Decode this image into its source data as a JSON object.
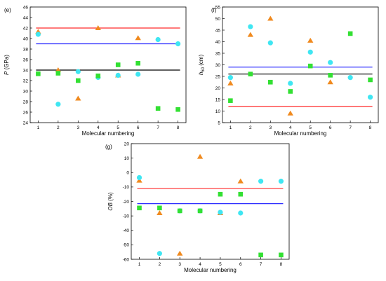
{
  "chart_data": [
    {
      "type": "scatter",
      "panel_label": "(e)",
      "xlabel": "Molecular numbering",
      "ylabel": "P (GPa)",
      "ylabel_main": "P",
      "ylabel_unit": " (GPa)",
      "xlim": [
        0.6,
        8.4
      ],
      "ylim": [
        24,
        46
      ],
      "xticks": [
        1,
        2,
        3,
        4,
        5,
        6,
        7,
        8
      ],
      "yticks": [
        24,
        26,
        28,
        30,
        32,
        34,
        36,
        38,
        40,
        42,
        44,
        46
      ],
      "hlines": [
        {
          "y": 42,
          "color": "#ff2a2a"
        },
        {
          "y": 39,
          "color": "#2a2aff"
        },
        {
          "y": 34,
          "color": "#000000"
        }
      ],
      "series": [
        {
          "marker": "triangle",
          "color": "#f08a1f",
          "x": [
            1,
            2,
            3,
            4,
            5,
            6
          ],
          "values": [
            41.3,
            34.0,
            28.6,
            42.0,
            33.0,
            40.1
          ]
        },
        {
          "marker": "circle",
          "color": "#3fe6f2",
          "x": [
            1,
            2,
            3,
            4,
            5,
            6,
            7,
            8
          ],
          "values": [
            40.8,
            27.5,
            33.7,
            32.6,
            33.0,
            33.2,
            39.8,
            39.0
          ]
        },
        {
          "marker": "square",
          "color": "#33e033",
          "x": [
            1,
            2,
            3,
            4,
            5,
            6,
            7,
            8
          ],
          "values": [
            33.3,
            33.4,
            32.0,
            32.9,
            35.0,
            35.3,
            26.7,
            26.5
          ]
        }
      ]
    },
    {
      "type": "scatter",
      "panel_label": "(f)",
      "xlabel": "Molecular numbering",
      "ylabel": "h50 (cm)",
      "ylabel_main": "h",
      "ylabel_sub": "50",
      "ylabel_unit": " (cm)",
      "xlim": [
        0.6,
        8.4
      ],
      "ylim": [
        5,
        55
      ],
      "xticks": [
        1,
        2,
        3,
        4,
        5,
        6,
        7,
        8
      ],
      "yticks": [
        5,
        10,
        15,
        20,
        25,
        30,
        35,
        40,
        45,
        50,
        55
      ],
      "hlines": [
        {
          "y": 12,
          "color": "#ff2a2a"
        },
        {
          "y": 29,
          "color": "#2a2aff"
        },
        {
          "y": 26,
          "color": "#000000"
        }
      ],
      "series": [
        {
          "marker": "triangle",
          "color": "#f08a1f",
          "x": [
            1,
            2,
            3,
            4,
            5,
            6
          ],
          "values": [
            22,
            43,
            50,
            9,
            40.5,
            22.5
          ]
        },
        {
          "marker": "circle",
          "color": "#3fe6f2",
          "x": [
            1,
            2,
            3,
            4,
            5,
            6,
            7,
            8
          ],
          "values": [
            24.5,
            46.5,
            39.5,
            22,
            35.5,
            31,
            24.5,
            16
          ]
        },
        {
          "marker": "square",
          "color": "#33e033",
          "x": [
            1,
            2,
            3,
            4,
            5,
            6,
            7,
            8
          ],
          "values": [
            14.5,
            26,
            22.5,
            18.5,
            29.5,
            25.5,
            43.5,
            23.5
          ]
        }
      ]
    },
    {
      "type": "scatter",
      "panel_label": "(g)",
      "xlabel": "Molecular numbering",
      "ylabel": "OB (%)",
      "ylabel_main": "OB",
      "ylabel_unit": " (%)",
      "xlim": [
        0.6,
        8.4
      ],
      "ylim": [
        -60,
        20
      ],
      "xticks": [
        1,
        2,
        3,
        4,
        5,
        6,
        7,
        8
      ],
      "yticks": [
        -60,
        -50,
        -40,
        -30,
        -20,
        -10,
        0,
        10,
        20
      ],
      "hlines": [
        {
          "y": -11,
          "color": "#ff2a2a"
        },
        {
          "y": -21.5,
          "color": "#2a2aff"
        }
      ],
      "series": [
        {
          "marker": "triangle",
          "color": "#f08a1f",
          "x": [
            1,
            2,
            3,
            4,
            5,
            6
          ],
          "values": [
            -5.5,
            -28,
            -56,
            11,
            -28,
            -6
          ]
        },
        {
          "marker": "circle",
          "color": "#3fe6f2",
          "x": [
            1,
            2,
            3,
            4,
            5,
            6,
            7,
            8
          ],
          "values": [
            -3.5,
            -56,
            -26.5,
            -26.5,
            -27.5,
            -28,
            -6,
            -6
          ]
        },
        {
          "marker": "square",
          "color": "#33e033",
          "x": [
            1,
            2,
            3,
            4,
            5,
            6,
            7,
            8
          ],
          "values": [
            -24.5,
            -24.5,
            -26.5,
            -26.5,
            -15,
            -15,
            -57,
            -57
          ]
        }
      ]
    }
  ]
}
